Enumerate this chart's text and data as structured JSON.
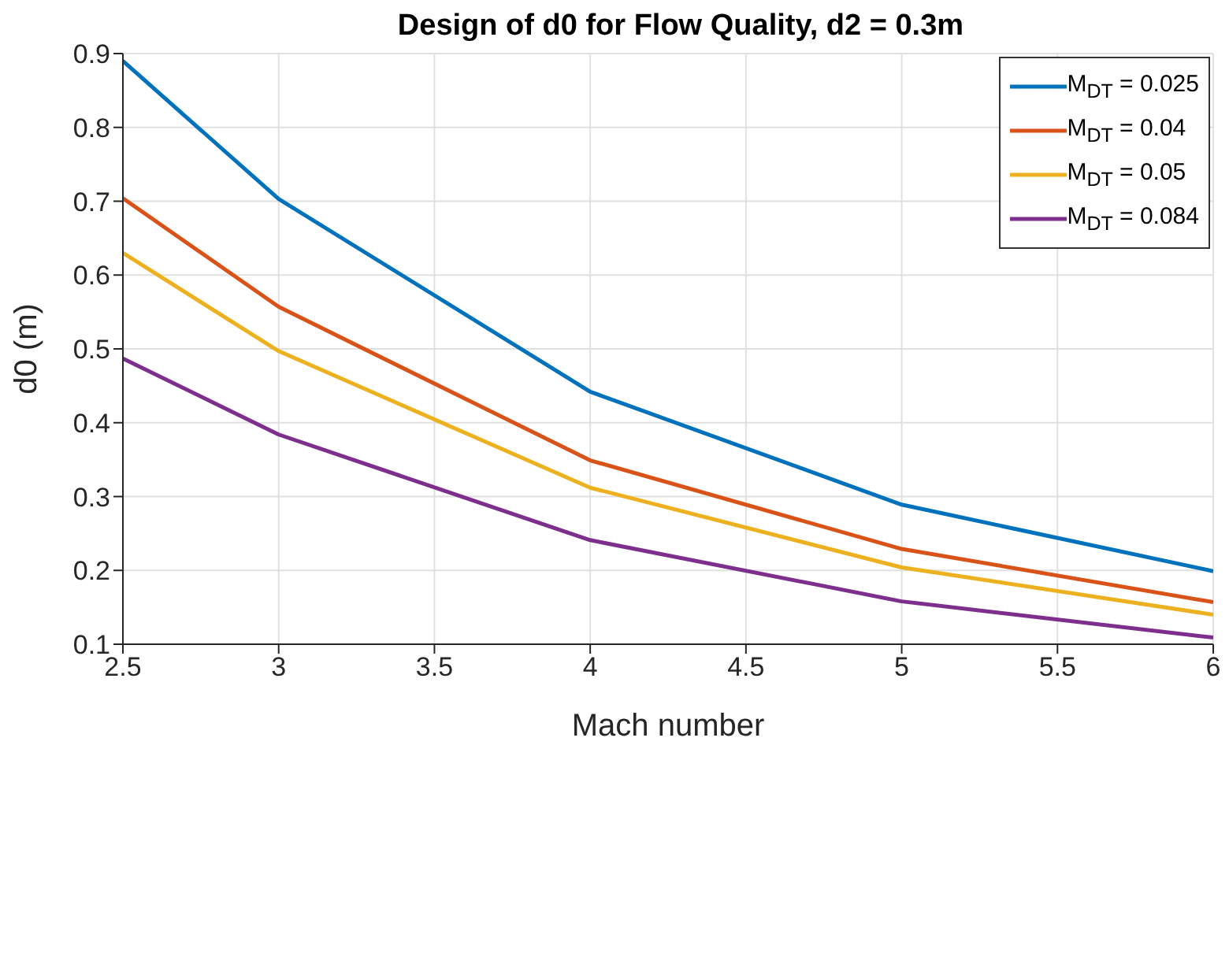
{
  "chart_data": {
    "type": "line",
    "title": "Design of d0 for Flow Quality, d2 = 0.3m",
    "xlabel": "Mach number",
    "ylabel": "d0 (m)",
    "x": [
      2.5,
      3,
      4,
      5,
      6
    ],
    "series": [
      {
        "name": "M$_{DT}$ = 0.025",
        "color": "#0072bd",
        "values": [
          0.89,
          0.703,
          0.442,
          0.289,
          0.199
        ]
      },
      {
        "name": "M$_{DT}$ = 0.04",
        "color": "#d95319",
        "values": [
          0.704,
          0.557,
          0.349,
          0.229,
          0.157
        ]
      },
      {
        "name": "M$_{DT}$ = 0.05",
        "color": "#edb120",
        "values": [
          0.63,
          0.497,
          0.312,
          0.204,
          0.14
        ]
      },
      {
        "name": "M$_{DT}$ = 0.084",
        "color": "#7e2f8e",
        "values": [
          0.487,
          0.384,
          0.241,
          0.158,
          0.109
        ]
      }
    ],
    "xlim": [
      2.5,
      6
    ],
    "xticks": [
      2.5,
      3,
      3.5,
      4,
      4.5,
      5,
      5.5,
      6
    ],
    "ylim": [
      0.1,
      0.9
    ],
    "yticks": [
      0.1,
      0.2,
      0.3,
      0.4,
      0.5,
      0.6,
      0.7,
      0.8,
      0.9
    ],
    "grid": true,
    "legend": "top right",
    "marker": "none",
    "line_style": "solid"
  }
}
